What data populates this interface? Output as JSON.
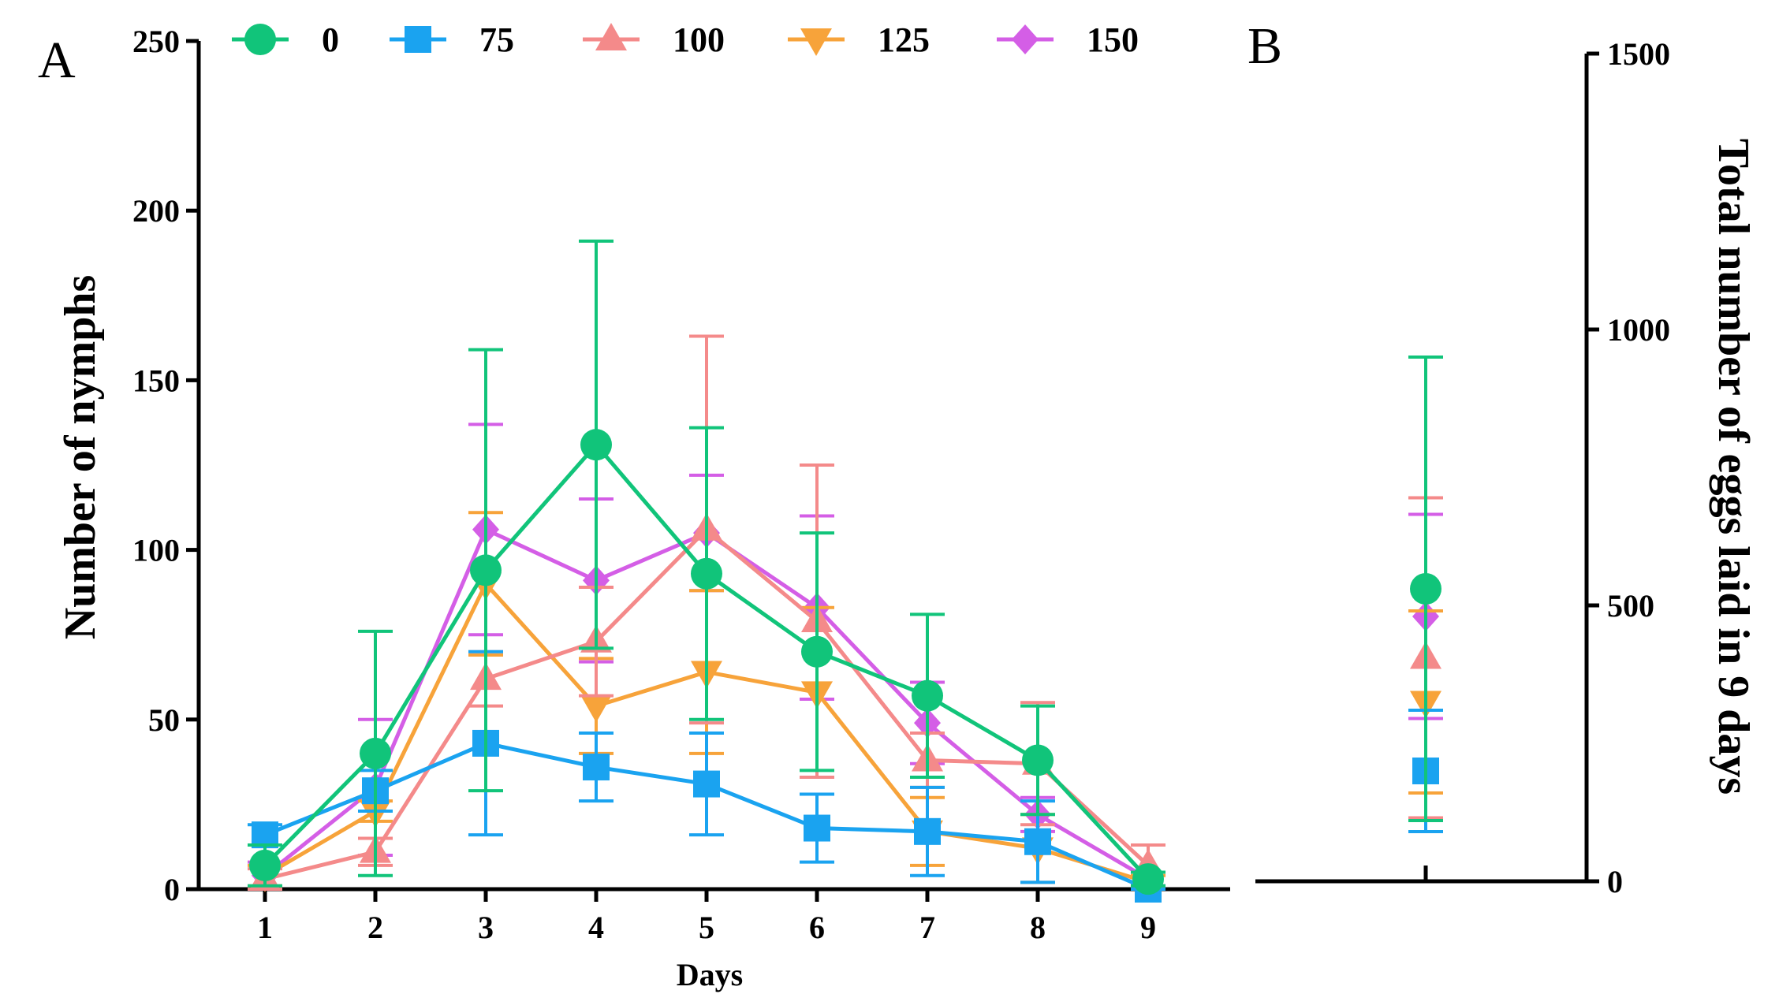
{
  "colors": {
    "axis": "#000000",
    "series": [
      "#11c47a",
      "#1aa3f0",
      "#f48a8a",
      "#f7a33a",
      "#d45ee6"
    ]
  },
  "panel_a_label": "A",
  "panel_b_label": "B",
  "legend_entries": [
    "0",
    "75",
    "100",
    "125",
    "150"
  ],
  "chart_data": [
    {
      "panel": "A",
      "type": "line",
      "title": "",
      "xlabel": "Days",
      "ylabel": "Number of nymphs",
      "x": [
        1,
        2,
        3,
        4,
        5,
        6,
        7,
        8,
        9
      ],
      "xticks": [
        "1",
        "2",
        "3",
        "4",
        "5",
        "6",
        "7",
        "8",
        "9"
      ],
      "yticks": [
        "0",
        "50",
        "100",
        "150",
        "200",
        "250"
      ],
      "ylim": [
        0,
        250
      ],
      "legend_position": "top",
      "series": [
        {
          "name": "0",
          "marker": "circle",
          "values": [
            7,
            40,
            94,
            131,
            93,
            70,
            57,
            38,
            3
          ],
          "err": [
            6,
            36,
            65,
            60,
            43,
            35,
            24,
            16,
            2
          ]
        },
        {
          "name": "75",
          "marker": "square",
          "values": [
            16,
            29,
            43,
            36,
            31,
            18,
            17,
            14,
            0
          ],
          "err": [
            3,
            6,
            27,
            10,
            15,
            10,
            13,
            12,
            1
          ]
        },
        {
          "name": "100",
          "marker": "triangle-up",
          "values": [
            3,
            11,
            62,
            73,
            106,
            79,
            38,
            37,
            7
          ],
          "err": [
            3,
            4,
            8,
            16,
            57,
            46,
            8,
            18,
            6
          ]
        },
        {
          "name": "125",
          "marker": "triangle-down",
          "values": [
            4,
            23,
            90,
            54,
            64,
            58,
            17,
            12,
            2
          ],
          "err": [
            3,
            3,
            21,
            14,
            24,
            25,
            10,
            10,
            2
          ]
        },
        {
          "name": "150",
          "marker": "diamond",
          "values": [
            4,
            30,
            106,
            91,
            105,
            83,
            49,
            22,
            3
          ],
          "err": [
            4,
            20,
            31,
            24,
            17,
            27,
            12,
            5,
            2
          ]
        }
      ]
    },
    {
      "panel": "B",
      "type": "scatter",
      "title": "",
      "xlabel": "",
      "ylabel": "Total number of eggs laid in 9 days",
      "yticks": [
        "0",
        "500",
        "1000",
        "1500"
      ],
      "ylim": [
        0,
        1500
      ],
      "series": [
        {
          "name": "0",
          "marker": "circle",
          "value": 530,
          "err": 420
        },
        {
          "name": "75",
          "marker": "square",
          "value": 200,
          "err": 110
        },
        {
          "name": "100",
          "marker": "triangle-up",
          "value": 405,
          "err": 290
        },
        {
          "name": "125",
          "marker": "triangle-down",
          "value": 325,
          "err": 165
        },
        {
          "name": "150",
          "marker": "diamond",
          "value": 480,
          "err": 185
        }
      ]
    }
  ]
}
